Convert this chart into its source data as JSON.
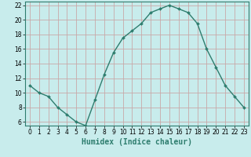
{
  "xlabel": "Humidex (Indice chaleur)",
  "x": [
    0,
    1,
    2,
    3,
    4,
    5,
    6,
    7,
    8,
    9,
    10,
    11,
    12,
    13,
    14,
    15,
    16,
    17,
    18,
    19,
    20,
    21,
    22,
    23
  ],
  "y": [
    11,
    10,
    9.5,
    8,
    7,
    6,
    5.5,
    9,
    12.5,
    15.5,
    17.5,
    18.5,
    19.5,
    21,
    21.5,
    22,
    21.5,
    21,
    19.5,
    16,
    13.5,
    11,
    9.5,
    8
  ],
  "line_color": "#2e7d6e",
  "marker": "D",
  "marker_size": 2.0,
  "background_color": "#c8ecec",
  "grid_color": "#c8a8a8",
  "ylim": [
    5.5,
    22.5
  ],
  "xlim": [
    -0.5,
    23.5
  ],
  "yticks": [
    6,
    8,
    10,
    12,
    14,
    16,
    18,
    20,
    22
  ],
  "xtick_labels": [
    "0",
    "1",
    "2",
    "3",
    "4",
    "5",
    "6",
    "7",
    "8",
    "9",
    "10",
    "11",
    "12",
    "13",
    "14",
    "15",
    "16",
    "17",
    "18",
    "19",
    "20",
    "21",
    "22",
    "23"
  ],
  "tick_fontsize": 5.5,
  "xlabel_fontsize": 7.0,
  "line_width": 1.0
}
